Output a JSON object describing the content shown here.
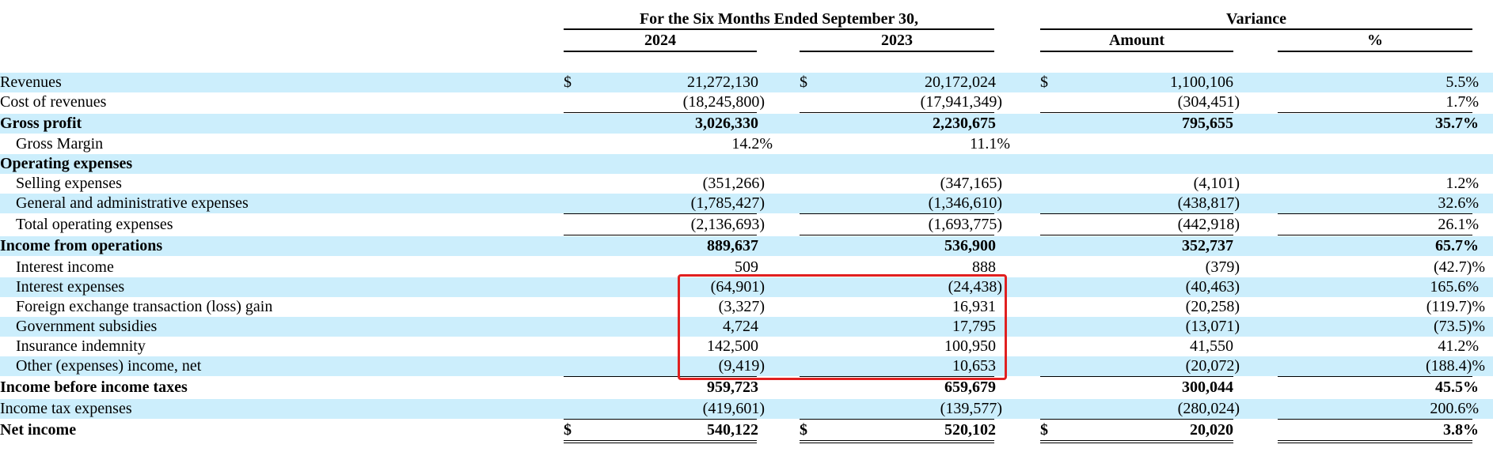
{
  "header": {
    "period_title": "For the Six Months Ended September 30,",
    "variance_title": "Variance",
    "col_2024": "2024",
    "col_2023": "2023",
    "col_amount": "Amount",
    "col_pct": "%"
  },
  "currency_symbol": "$",
  "rows": [
    {
      "label": "Revenues",
      "v2024": "21,272,130",
      "v2023": "20,172,024",
      "amount": "1,100,106",
      "pct": "5.5%"
    },
    {
      "label": "Cost of revenues",
      "v2024": "(18,245,800)",
      "v2023": "(17,941,349)",
      "amount": "(304,451)",
      "pct": "1.7%"
    },
    {
      "label": "Gross profit",
      "v2024": "3,026,330",
      "v2023": "2,230,675",
      "amount": "795,655",
      "pct": "35.7%"
    },
    {
      "label": "Gross Margin",
      "v2024": "14.2%",
      "v2023": "11.1%",
      "amount": "",
      "pct": ""
    },
    {
      "label": "Operating expenses",
      "v2024": "",
      "v2023": "",
      "amount": "",
      "pct": ""
    },
    {
      "label": "Selling expenses",
      "v2024": "(351,266)",
      "v2023": "(347,165)",
      "amount": "(4,101)",
      "pct": "1.2%"
    },
    {
      "label": "General and administrative expenses",
      "v2024": "(1,785,427)",
      "v2023": "(1,346,610)",
      "amount": "(438,817)",
      "pct": "32.6%"
    },
    {
      "label": "Total operating expenses",
      "v2024": "(2,136,693)",
      "v2023": "(1,693,775)",
      "amount": "(442,918)",
      "pct": "26.1%"
    },
    {
      "label": "Income from operations",
      "v2024": "889,637",
      "v2023": "536,900",
      "amount": "352,737",
      "pct": "65.7%"
    },
    {
      "label": "Interest income",
      "v2024": "509",
      "v2023": "888",
      "amount": "(379)",
      "pct": "(42.7)%"
    },
    {
      "label": "Interest expenses",
      "v2024": "(64,901)",
      "v2023": "(24,438)",
      "amount": "(40,463)",
      "pct": "165.6%"
    },
    {
      "label": "Foreign exchange transaction (loss) gain",
      "v2024": "(3,327)",
      "v2023": "16,931",
      "amount": "(20,258)",
      "pct": "(119.7)%"
    },
    {
      "label": "Government subsidies",
      "v2024": "4,724",
      "v2023": "17,795",
      "amount": "(13,071)",
      "pct": "(73.5)%"
    },
    {
      "label": "Insurance indemnity",
      "v2024": "142,500",
      "v2023": "100,950",
      "amount": "41,550",
      "pct": "41.2%"
    },
    {
      "label": "Other (expenses) income, net",
      "v2024": "(9,419)",
      "v2023": "10,653",
      "amount": "(20,072)",
      "pct": "(188.4)%"
    },
    {
      "label": "Income before income taxes",
      "v2024": "959,723",
      "v2023": "659,679",
      "amount": "300,044",
      "pct": "45.5%"
    },
    {
      "label": "Income tax expenses",
      "v2024": "(419,601)",
      "v2023": "(139,577)",
      "amount": "(280,024)",
      "pct": "200.6%"
    },
    {
      "label": "Net income",
      "v2024": "540,122",
      "v2023": "520,102",
      "amount": "20,020",
      "pct": "3.8%"
    }
  ]
}
